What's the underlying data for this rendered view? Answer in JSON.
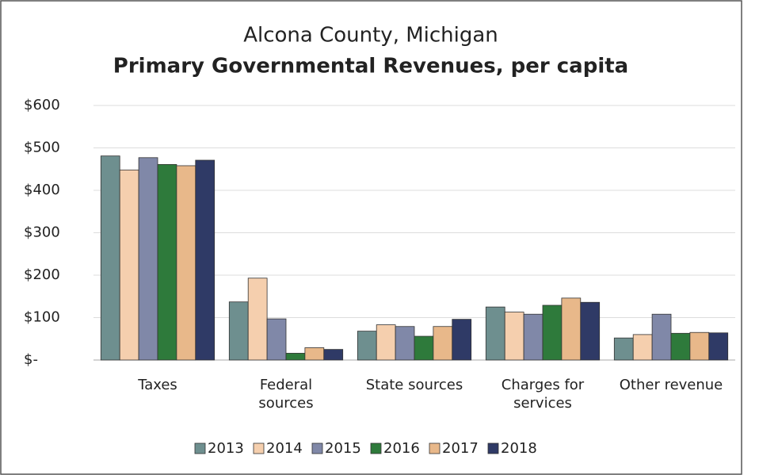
{
  "chart_data": {
    "type": "bar",
    "title": "Alcona County, Michigan",
    "subtitle": "Primary Governmental Revenues, per capita",
    "categories": [
      "Taxes",
      "Federal\nsources",
      "State sources",
      "Charges for\nservices",
      "Other revenue"
    ],
    "series": [
      {
        "name": "2013",
        "color": "#6e8f8f",
        "values": [
          481,
          137,
          68,
          125,
          52
        ]
      },
      {
        "name": "2014",
        "color": "#f5cfae",
        "values": [
          448,
          193,
          83,
          113,
          60
        ]
      },
      {
        "name": "2015",
        "color": "#8088a8",
        "values": [
          477,
          97,
          79,
          108,
          108
        ]
      },
      {
        "name": "2016",
        "color": "#2e7a3b",
        "values": [
          461,
          16,
          56,
          129,
          63
        ]
      },
      {
        "name": "2017",
        "color": "#e8b88a",
        "values": [
          458,
          29,
          79,
          146,
          65
        ]
      },
      {
        "name": "2018",
        "color": "#2f3a66",
        "values": [
          471,
          25,
          96,
          136,
          64
        ]
      }
    ],
    "ylim": [
      0,
      600
    ],
    "yticks": [
      {
        "value": 0,
        "label": "$-"
      },
      {
        "value": 100,
        "label": "$100"
      },
      {
        "value": 200,
        "label": "$200"
      },
      {
        "value": 300,
        "label": "$300"
      },
      {
        "value": 400,
        "label": "$400"
      },
      {
        "value": 500,
        "label": "$500"
      },
      {
        "value": 600,
        "label": "$600"
      }
    ],
    "grid": true,
    "legend": "bottom"
  }
}
